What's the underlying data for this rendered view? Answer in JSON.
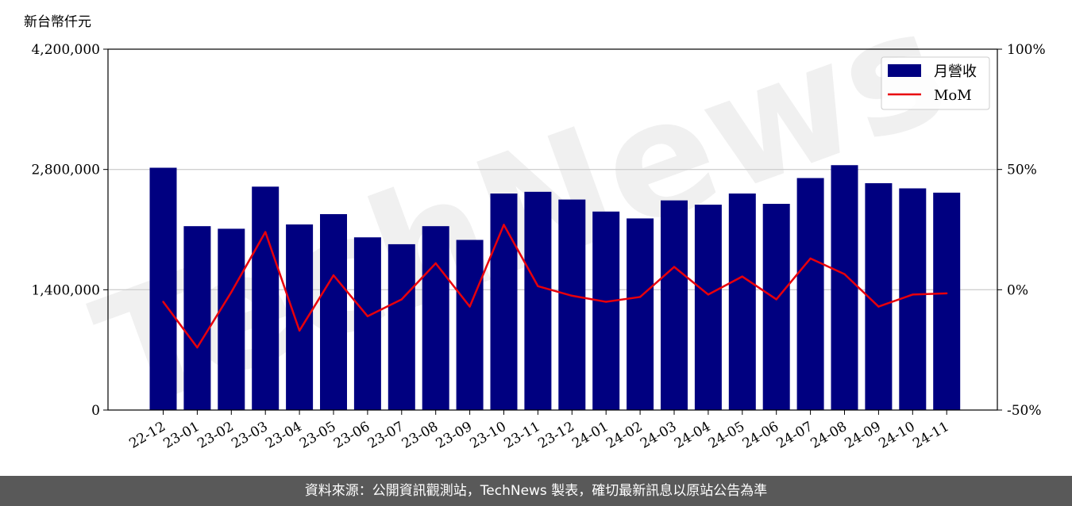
{
  "watermark": "TechNews",
  "footer": {
    "source_text": "資料來源：公開資訊觀測站，TechNews 製表，確切最新訊息以原站公告為準"
  },
  "chart_data": {
    "type": "bar",
    "unit_label": "新台幣仟元",
    "categories": [
      "22-12",
      "23-01",
      "23-02",
      "23-03",
      "23-04",
      "23-05",
      "23-06",
      "23-07",
      "23-08",
      "23-09",
      "23-10",
      "23-11",
      "23-12",
      "24-01",
      "24-02",
      "24-03",
      "24-04",
      "24-05",
      "24-06",
      "24-07",
      "24-08",
      "24-09",
      "24-10",
      "24-11"
    ],
    "series": [
      {
        "name": "月營收",
        "type": "bar",
        "axis": "left",
        "color": "#000080",
        "values": [
          2820000,
          2140000,
          2110000,
          2600000,
          2160000,
          2280000,
          2010000,
          1930000,
          2140000,
          1980000,
          2520000,
          2540000,
          2450000,
          2310000,
          2230000,
          2440000,
          2390000,
          2520000,
          2400000,
          2700000,
          2850000,
          2640000,
          2580000,
          2530000
        ]
      },
      {
        "name": "MoM",
        "type": "line",
        "axis": "right",
        "color": "#e8000b",
        "values": [
          -5.0,
          -24.0,
          -1.0,
          24.0,
          -17.0,
          6.0,
          -11.0,
          -4.0,
          11.0,
          -7.0,
          27.0,
          1.5,
          -2.5,
          -5.0,
          -3.0,
          9.5,
          -2.0,
          5.5,
          -4.0,
          13.0,
          6.5,
          -7.0,
          -2.0,
          -1.5
        ]
      }
    ],
    "y_left": {
      "min": 0,
      "max": 4200000,
      "ticks": [
        0,
        1400000,
        2800000,
        4200000
      ],
      "tick_labels": [
        "0",
        "1,400,000",
        "2,800,000",
        "4,200,000"
      ]
    },
    "y_right": {
      "min": -50,
      "max": 100,
      "ticks": [
        -50,
        0,
        50,
        100
      ],
      "tick_labels": [
        "-50%",
        "0%",
        "50%",
        "100%"
      ]
    },
    "grid": "horizontal",
    "legend_position": "top-right"
  }
}
